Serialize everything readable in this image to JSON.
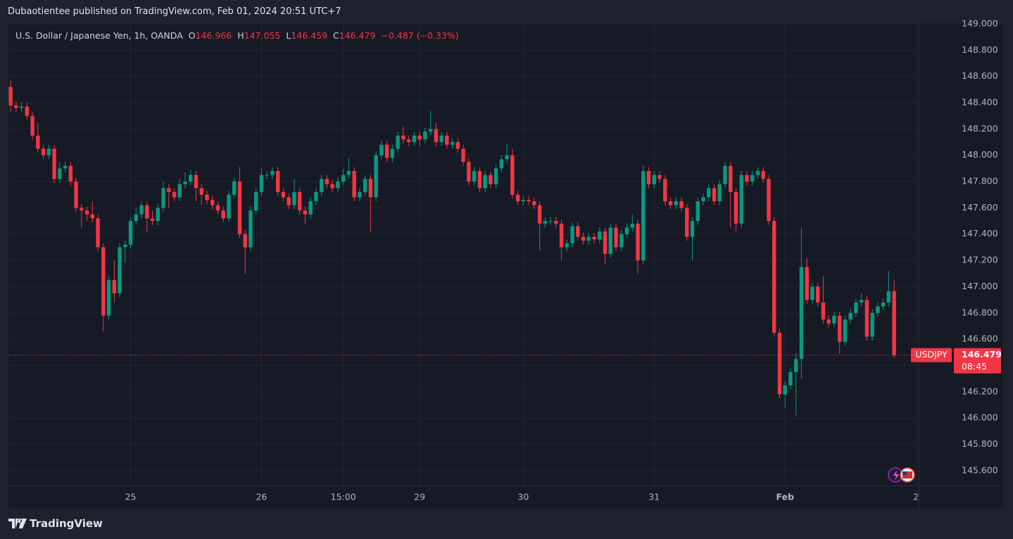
{
  "header": {
    "publisher": "Dubaotientee published on TradingView.com, Feb 01, 2024 20:51 UTC+7"
  },
  "footer": {
    "brand": "TradingView"
  },
  "chart_data": {
    "type": "candlestick",
    "title": "U.S. Dollar / Japanese Yen, 1h, OANDA",
    "ohlc_labels": [
      "O",
      "H",
      "L",
      "C"
    ],
    "change_label": "−0.487 (−0.33%)",
    "symbol": "USDJPY",
    "countdown": "08:45",
    "up_color": "#089981",
    "down_color": "#f23645",
    "grid": true,
    "xlim": [
      -0.4,
      166.5
    ],
    "xticks": [
      {
        "value": 22,
        "label": "25"
      },
      {
        "value": 46,
        "label": "26"
      },
      {
        "value": 61,
        "label": "15:00"
      },
      {
        "value": 75,
        "label": "29"
      },
      {
        "value": 94,
        "label": "30"
      },
      {
        "value": 118,
        "label": "31"
      },
      {
        "value": 142,
        "label": "Feb"
      },
      {
        "value": 166,
        "label": "2"
      }
    ],
    "ylim": [
      145.487,
      149.005
    ],
    "yticks": [
      {
        "value": 145.6,
        "label": "145.600"
      },
      {
        "value": 145.8,
        "label": "145.800"
      },
      {
        "value": 146.0,
        "label": "146.000"
      },
      {
        "value": 146.2,
        "label": "146.200"
      },
      {
        "value": 146.4,
        "label": "146.400"
      },
      {
        "value": 146.6,
        "label": "146.600"
      },
      {
        "value": 146.8,
        "label": "146.800"
      },
      {
        "value": 147.0,
        "label": "147.000"
      },
      {
        "value": 147.2,
        "label": "147.200"
      },
      {
        "value": 147.4,
        "label": "147.400"
      },
      {
        "value": 147.6,
        "label": "147.600"
      },
      {
        "value": 147.8,
        "label": "147.800"
      },
      {
        "value": 148.0,
        "label": "148.000"
      },
      {
        "value": 148.2,
        "label": "148.200"
      },
      {
        "value": 148.4,
        "label": "148.400"
      },
      {
        "value": 148.6,
        "label": "148.600"
      },
      {
        "value": 148.8,
        "label": "148.800"
      },
      {
        "value": 149.0,
        "label": "149.000"
      }
    ],
    "open": [
      148.52,
      148.38,
      148.36,
      148.37,
      148.3,
      148.15,
      148.05,
      148.0,
      148.05,
      147.82,
      147.9,
      147.92,
      147.8,
      147.6,
      147.58,
      147.55,
      147.52,
      147.3,
      146.78,
      147.05,
      146.95,
      147.3,
      147.32,
      147.5,
      147.55,
      147.62,
      147.52,
      147.5,
      147.6,
      147.75,
      147.72,
      147.68,
      147.78,
      147.8,
      147.85,
      147.75,
      147.7,
      147.66,
      147.62,
      147.58,
      147.52,
      147.7,
      147.8,
      147.4,
      147.3,
      147.58,
      147.72,
      147.85,
      147.85,
      147.88,
      147.72,
      147.68,
      147.62,
      147.72,
      147.58,
      147.55,
      147.65,
      147.72,
      147.82,
      147.78,
      147.75,
      147.8,
      147.85,
      147.88,
      147.68,
      147.72,
      147.82,
      147.68,
      148.0,
      148.08,
      147.98,
      148.05,
      148.15,
      148.12,
      148.1,
      148.15,
      148.12,
      148.18,
      148.2,
      148.1,
      148.15,
      148.08,
      148.1,
      148.05,
      147.95,
      147.8,
      147.88,
      147.75,
      147.85,
      147.78,
      147.9,
      147.97,
      148.0,
      147.7,
      147.65,
      147.66,
      147.65,
      147.62,
      147.48,
      147.5,
      147.5,
      147.48,
      147.3,
      147.33,
      147.46,
      147.38,
      147.35,
      147.38,
      147.36,
      147.42,
      147.25,
      147.45,
      147.3,
      147.4,
      147.45,
      147.48,
      147.2,
      147.88,
      147.78,
      147.85,
      147.82,
      147.65,
      147.62,
      147.65,
      147.6,
      147.38,
      147.5,
      147.65,
      147.68,
      147.75,
      147.65,
      147.78,
      147.92,
      147.72,
      147.48,
      147.85,
      147.8,
      147.85,
      147.88,
      147.82,
      147.5,
      146.65,
      146.18,
      146.25,
      146.35,
      146.45,
      147.15,
      146.9,
      147.0,
      146.88,
      146.75,
      146.72,
      146.78,
      146.58,
      146.75,
      146.8,
      146.88,
      146.9,
      146.62,
      146.8,
      146.85,
      146.88,
      146.966
    ],
    "high": [
      148.57,
      148.41,
      148.4,
      148.4,
      148.33,
      148.25,
      148.08,
      148.08,
      148.08,
      147.95,
      147.95,
      147.95,
      147.83,
      147.63,
      147.61,
      147.65,
      147.55,
      147.33,
      147.08,
      147.2,
      147.33,
      147.35,
      147.53,
      147.6,
      147.65,
      147.65,
      147.58,
      147.63,
      147.8,
      147.78,
      147.75,
      147.82,
      147.87,
      147.89,
      147.88,
      147.78,
      147.73,
      147.69,
      147.65,
      147.61,
      147.73,
      147.83,
      147.91,
      147.43,
      147.61,
      147.75,
      147.9,
      147.88,
      147.91,
      147.91,
      147.75,
      147.71,
      147.82,
      147.75,
      147.61,
      147.68,
      147.75,
      147.85,
      147.85,
      147.81,
      147.83,
      147.9,
      147.98,
      147.91,
      147.75,
      147.85,
      147.85,
      148.03,
      148.11,
      148.11,
      148.08,
      148.18,
      148.22,
      148.15,
      148.18,
      148.18,
      148.21,
      148.34,
      148.25,
      148.18,
      148.18,
      148.13,
      148.13,
      148.08,
      147.98,
      147.91,
      147.91,
      147.88,
      147.88,
      147.93,
      148.0,
      148.09,
      148.05,
      147.73,
      147.69,
      147.69,
      147.68,
      147.65,
      147.53,
      147.53,
      147.53,
      147.51,
      147.36,
      147.49,
      147.49,
      147.41,
      147.41,
      147.41,
      147.45,
      147.45,
      147.48,
      147.48,
      147.43,
      147.48,
      147.55,
      147.51,
      147.92,
      147.91,
      147.88,
      147.88,
      147.85,
      147.68,
      147.68,
      147.68,
      147.63,
      147.53,
      147.68,
      147.71,
      147.78,
      147.78,
      147.81,
      147.95,
      147.95,
      147.75,
      147.88,
      147.88,
      147.88,
      147.91,
      147.91,
      147.85,
      147.53,
      146.68,
      146.28,
      146.38,
      146.5,
      147.45,
      147.22,
      147.03,
      147.03,
      147.08,
      146.78,
      146.81,
      146.81,
      146.78,
      146.83,
      146.91,
      146.95,
      146.93,
      146.83,
      146.88,
      146.91,
      147.12,
      147.055
    ],
    "low": [
      148.33,
      148.33,
      148.33,
      148.27,
      148.12,
      148.02,
      147.97,
      147.97,
      147.79,
      147.79,
      147.87,
      147.77,
      147.57,
      147.45,
      147.5,
      147.49,
      147.27,
      146.66,
      146.75,
      146.88,
      146.92,
      147.18,
      147.29,
      147.47,
      147.52,
      147.42,
      147.47,
      147.47,
      147.57,
      147.6,
      147.65,
      147.65,
      147.75,
      147.77,
      147.65,
      147.62,
      147.63,
      147.59,
      147.55,
      147.49,
      147.49,
      147.67,
      147.37,
      147.1,
      147.27,
      147.55,
      147.69,
      147.82,
      147.82,
      147.69,
      147.65,
      147.59,
      147.59,
      147.55,
      147.48,
      147.52,
      147.62,
      147.69,
      147.75,
      147.72,
      147.72,
      147.77,
      147.82,
      147.65,
      147.65,
      147.69,
      147.42,
      147.65,
      147.97,
      147.95,
      147.95,
      148.02,
      148.09,
      148.07,
      148.07,
      148.07,
      148.09,
      148.15,
      148.07,
      148.07,
      148.05,
      148.05,
      148.02,
      147.92,
      147.77,
      147.77,
      147.72,
      147.72,
      147.75,
      147.75,
      147.87,
      147.94,
      147.67,
      147.62,
      147.62,
      147.62,
      147.59,
      147.28,
      147.45,
      147.47,
      147.45,
      147.2,
      147.27,
      147.3,
      147.35,
      147.32,
      147.32,
      147.33,
      147.33,
      147.17,
      147.22,
      147.27,
      147.27,
      147.37,
      147.42,
      147.1,
      147.17,
      147.75,
      147.75,
      147.79,
      147.62,
      147.59,
      147.59,
      147.57,
      147.35,
      147.2,
      147.47,
      147.62,
      147.65,
      147.62,
      147.62,
      147.75,
      147.45,
      147.42,
      147.45,
      147.77,
      147.77,
      147.82,
      147.79,
      147.47,
      146.62,
      146.15,
      146.08,
      146.22,
      146.02,
      146.3,
      146.87,
      146.87,
      146.85,
      146.72,
      146.69,
      146.69,
      146.49,
      146.55,
      146.72,
      146.77,
      146.85,
      146.59,
      146.59,
      146.77,
      146.82,
      146.85,
      146.459
    ],
    "close": [
      148.38,
      148.36,
      148.37,
      148.3,
      148.15,
      148.05,
      148.0,
      148.05,
      147.82,
      147.9,
      147.92,
      147.8,
      147.6,
      147.58,
      147.55,
      147.52,
      147.3,
      146.78,
      147.05,
      146.95,
      147.3,
      147.32,
      147.5,
      147.55,
      147.62,
      147.52,
      147.5,
      147.6,
      147.75,
      147.72,
      147.68,
      147.78,
      147.8,
      147.85,
      147.75,
      147.7,
      147.66,
      147.62,
      147.58,
      147.52,
      147.7,
      147.8,
      147.4,
      147.3,
      147.58,
      147.72,
      147.85,
      147.85,
      147.88,
      147.72,
      147.68,
      147.62,
      147.72,
      147.58,
      147.55,
      147.65,
      147.72,
      147.82,
      147.78,
      147.75,
      147.8,
      147.85,
      147.88,
      147.68,
      147.72,
      147.82,
      147.68,
      148.0,
      148.08,
      147.98,
      148.05,
      148.15,
      148.12,
      148.1,
      148.15,
      148.12,
      148.18,
      148.2,
      148.1,
      148.15,
      148.08,
      148.1,
      148.05,
      147.95,
      147.8,
      147.88,
      147.75,
      147.85,
      147.78,
      147.9,
      147.97,
      148.0,
      147.7,
      147.65,
      147.66,
      147.65,
      147.62,
      147.48,
      147.5,
      147.5,
      147.48,
      147.3,
      147.33,
      147.46,
      147.38,
      147.35,
      147.38,
      147.36,
      147.42,
      147.25,
      147.45,
      147.3,
      147.4,
      147.45,
      147.48,
      147.2,
      147.88,
      147.78,
      147.85,
      147.82,
      147.65,
      147.62,
      147.65,
      147.6,
      147.38,
      147.5,
      147.65,
      147.68,
      147.75,
      147.65,
      147.78,
      147.92,
      147.72,
      147.48,
      147.85,
      147.8,
      147.85,
      147.88,
      147.82,
      147.5,
      146.65,
      146.18,
      146.25,
      146.35,
      146.45,
      147.15,
      146.9,
      147.0,
      146.88,
      146.75,
      146.72,
      146.78,
      146.58,
      146.75,
      146.8,
      146.88,
      146.9,
      146.62,
      146.8,
      146.85,
      146.88,
      146.966,
      146.479
    ]
  }
}
